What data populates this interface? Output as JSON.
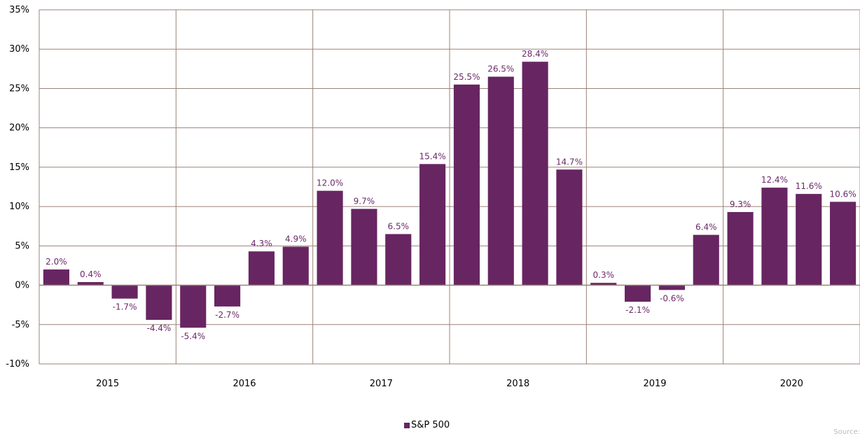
{
  "chart_data": {
    "type": "bar",
    "title": "",
    "xlabel": "",
    "ylabel": "",
    "ylim": [
      -10,
      35
    ],
    "y_ticks": [
      "-10%",
      "-5%",
      "0%",
      "5%",
      "10%",
      "15%",
      "20%",
      "25%",
      "30%",
      "35%"
    ],
    "y_tick_values": [
      -10,
      -5,
      0,
      5,
      10,
      15,
      20,
      25,
      30,
      35
    ],
    "grid": true,
    "legend_position": "bottom-center",
    "year_groups": [
      "2015",
      "2016",
      "2017",
      "2018",
      "2019",
      "2020"
    ],
    "series": [
      {
        "name": "S&P 500",
        "color": "#672562",
        "values": [
          2.0,
          0.4,
          -1.7,
          -4.4,
          -5.4,
          -2.7,
          4.3,
          4.9,
          12.0,
          9.7,
          6.5,
          15.4,
          25.5,
          26.5,
          28.4,
          14.7,
          0.3,
          -2.1,
          -0.6,
          6.4,
          9.3,
          12.4,
          11.6,
          10.6
        ],
        "labels": [
          "2.0%",
          "0.4%",
          "-1.7%",
          "-4.4%",
          "-5.4%",
          "-2.7%",
          "4.3%",
          "4.9%",
          "12.0%",
          "9.7%",
          "6.5%",
          "15.4%",
          "25.5%",
          "26.5%",
          "28.4%",
          "14.7%",
          "0.3%",
          "-2.1%",
          "-0.6%",
          "6.4%",
          "9.3%",
          "12.4%",
          "11.6%",
          "10.6%"
        ]
      }
    ]
  },
  "legend": {
    "label": "S&P 500",
    "color": "#672562"
  },
  "source_text": "Source: FactSet",
  "colors": {
    "bar": "#672562",
    "label": "#6b2a68",
    "grid": "#9b8378"
  }
}
